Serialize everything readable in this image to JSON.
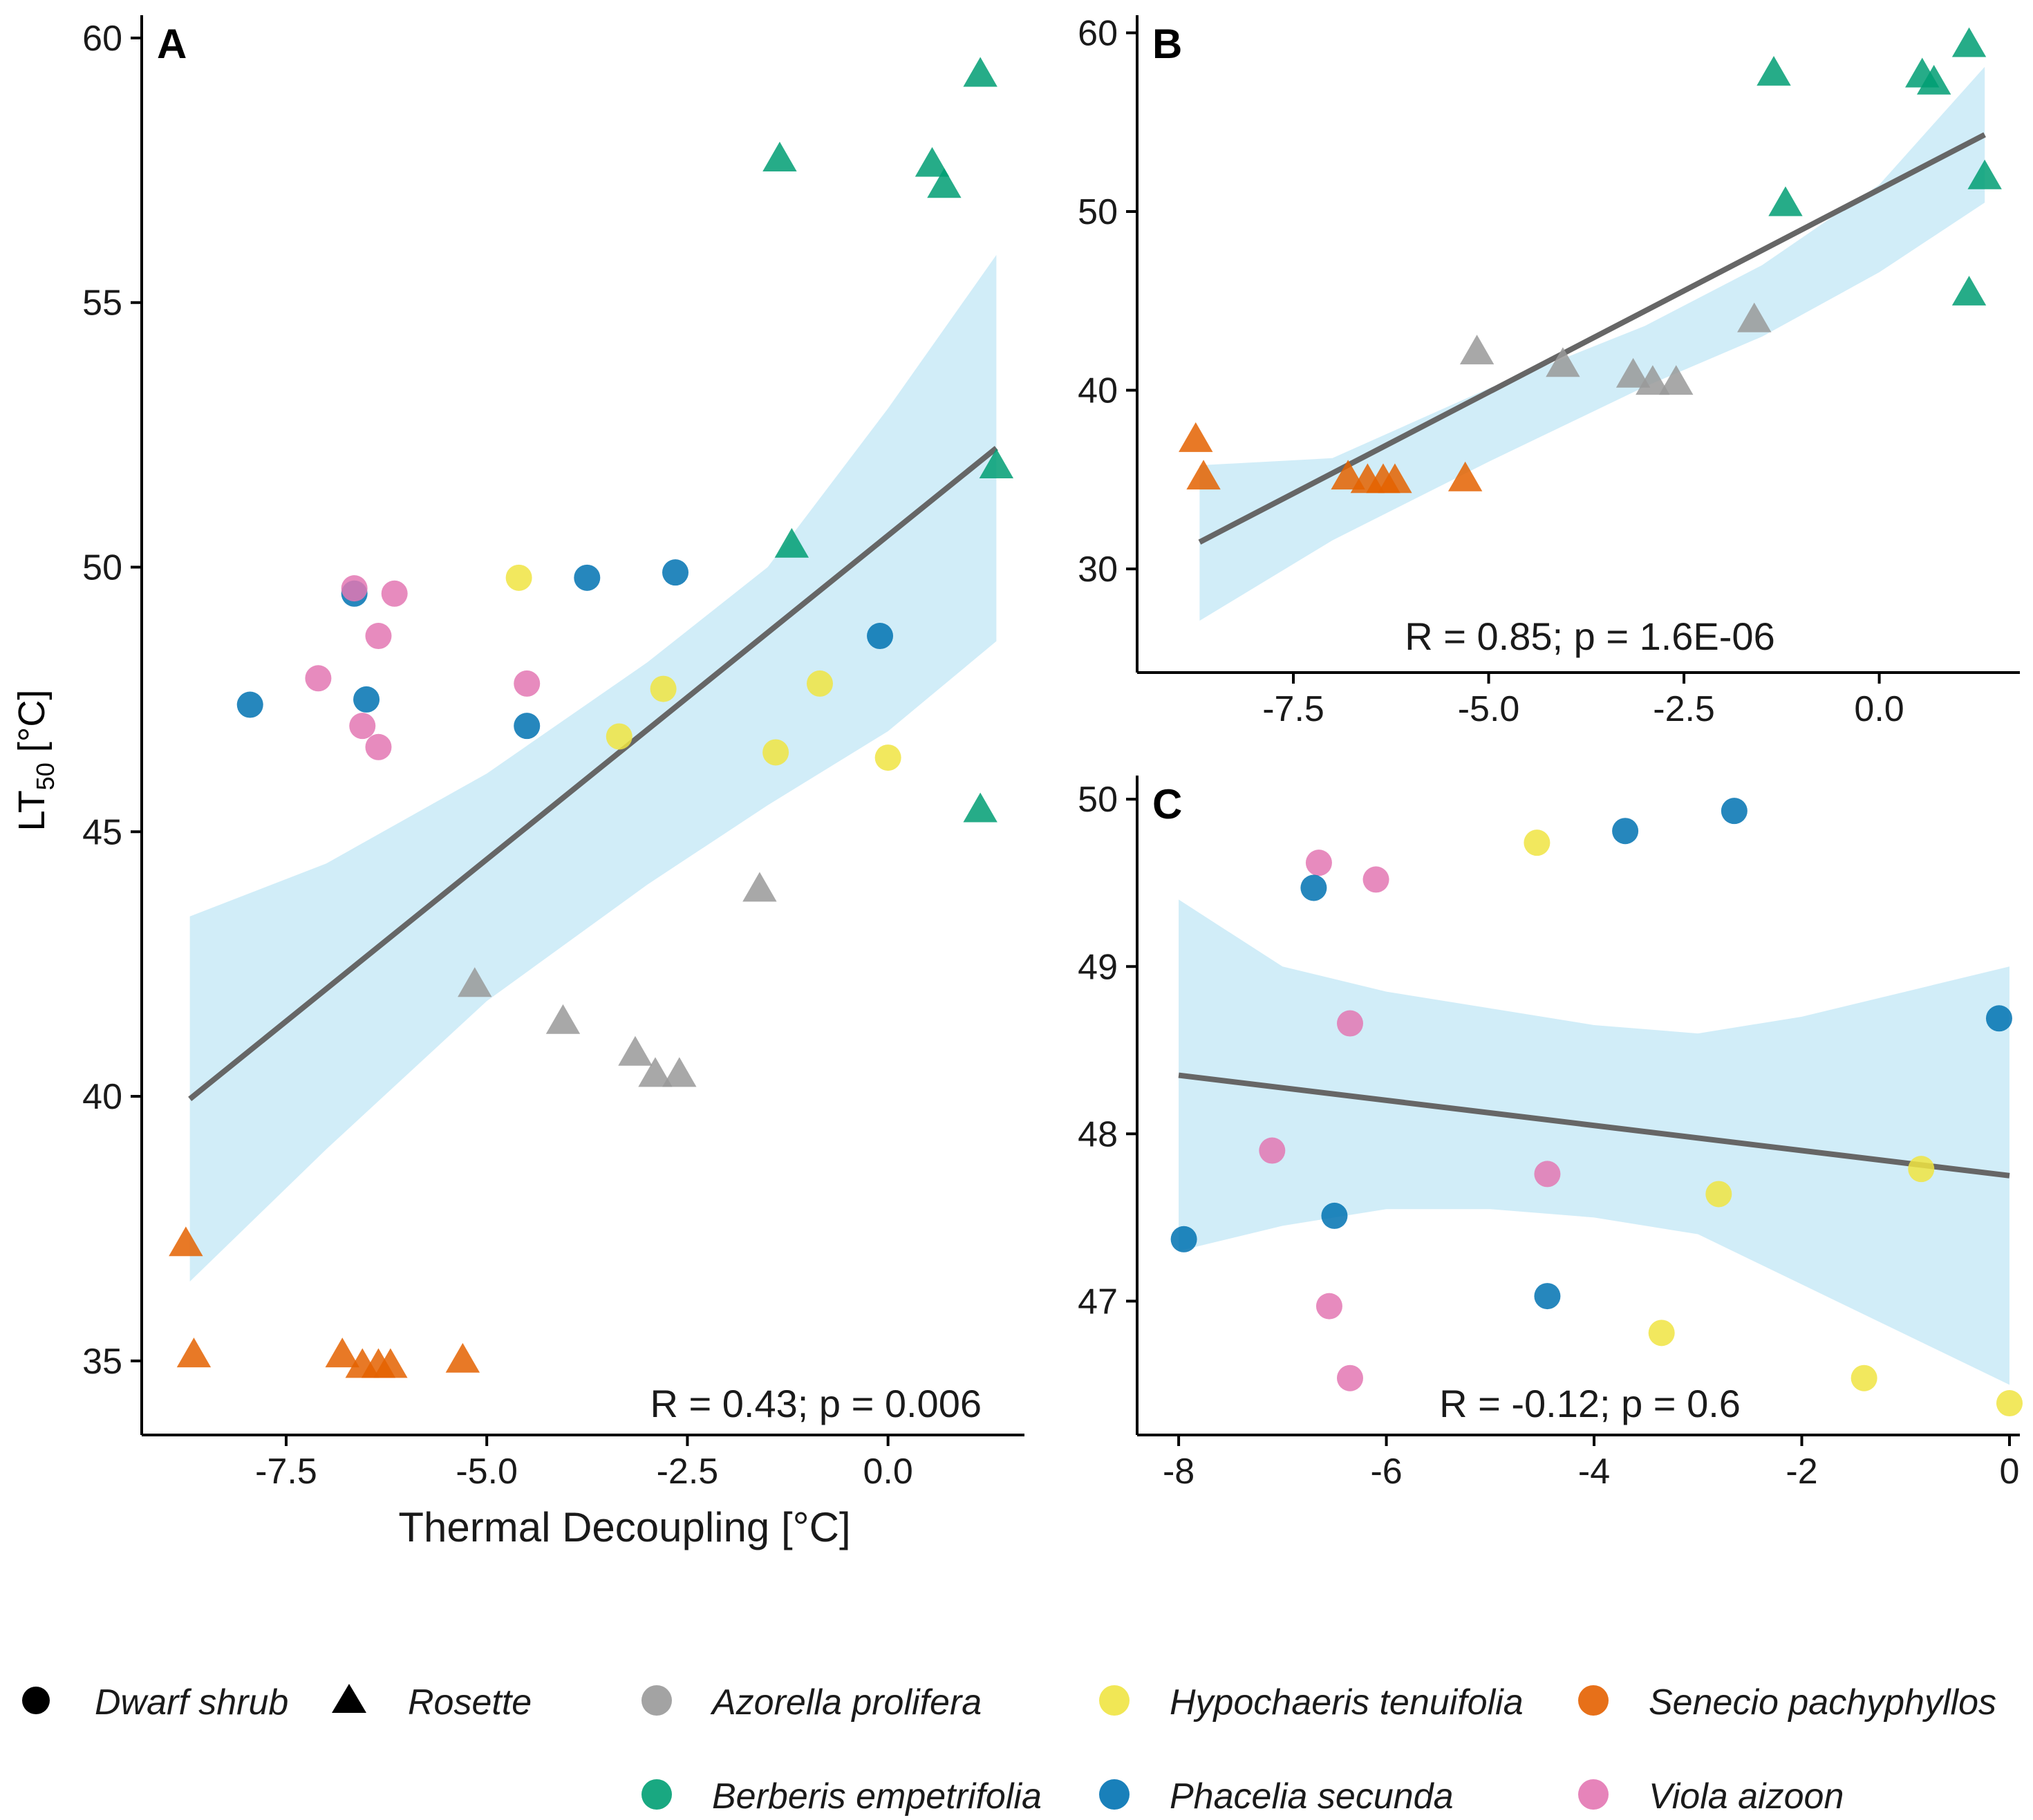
{
  "colors": {
    "Azorella prolifera": "#999999",
    "Berberis empetrifolia": "#009E73",
    "Hypochaeris tenuifolia": "#F0E442",
    "Phacelia secunda": "#0072B2",
    "Senecio pachyphyllos": "#E46100",
    "Viola aizoon": "#E377B3",
    "ci_band": "#BEE6F5",
    "fit_line": "#666666"
  },
  "legend": {
    "shapes": [
      {
        "label": "Dwarf shrub",
        "shape": "circle"
      },
      {
        "label": "Rosette",
        "shape": "triangle"
      }
    ],
    "species": [
      "Azorella prolifera",
      "Hypochaeris tenuifolia",
      "Senecio pachyphyllos",
      "Berberis empetrifolia",
      "Phacelia secunda",
      "Viola aizoon"
    ]
  },
  "y_axis_label": {
    "prefix": "LT",
    "subscript": "50",
    "suffix": " [°C]"
  },
  "chart_data": [
    {
      "id": "A",
      "type": "scatter",
      "panel_label": "A",
      "xlabel": "Thermal Decoupling [°C]",
      "xlim": [
        -9.3,
        1.7
      ],
      "ylim": [
        33.6,
        60.3
      ],
      "xticks": [
        -7.5,
        -5.0,
        -2.5,
        0.0
      ],
      "xtick_labels": [
        "-7.5",
        "-5.0",
        "-2.5",
        "0.0"
      ],
      "yticks": [
        35,
        40,
        45,
        50,
        55,
        60
      ],
      "ytick_labels": [
        "35",
        "40",
        "45",
        "50",
        "55",
        "60"
      ],
      "annotation": "R = 0.43; p = 0.006",
      "fit": {
        "x": [
          -8.7,
          1.35
        ],
        "y": [
          39.95,
          52.25
        ]
      },
      "ci": {
        "x": [
          -8.7,
          -7.0,
          -5.0,
          -3.0,
          -1.5,
          0.0,
          1.35
        ],
        "lower": [
          36.5,
          39.0,
          41.8,
          44.0,
          45.5,
          46.9,
          48.6
        ],
        "upper": [
          43.4,
          44.4,
          46.1,
          48.2,
          50.0,
          53.0,
          55.9
        ]
      },
      "points": [
        {
          "x": 1.15,
          "y": 59.3,
          "shape": "triangle",
          "species": "Berberis empetrifolia"
        },
        {
          "x": -1.35,
          "y": 57.7,
          "shape": "triangle",
          "species": "Berberis empetrifolia"
        },
        {
          "x": 0.55,
          "y": 57.6,
          "shape": "triangle",
          "species": "Berberis empetrifolia"
        },
        {
          "x": 0.7,
          "y": 57.2,
          "shape": "triangle",
          "species": "Berberis empetrifolia"
        },
        {
          "x": 1.35,
          "y": 51.9,
          "shape": "triangle",
          "species": "Berberis empetrifolia"
        },
        {
          "x": -1.2,
          "y": 50.4,
          "shape": "triangle",
          "species": "Berberis empetrifolia"
        },
        {
          "x": 1.15,
          "y": 45.4,
          "shape": "triangle",
          "species": "Berberis empetrifolia"
        },
        {
          "x": -1.6,
          "y": 43.9,
          "shape": "triangle",
          "species": "Azorella prolifera"
        },
        {
          "x": -5.15,
          "y": 42.1,
          "shape": "triangle",
          "species": "Azorella prolifera"
        },
        {
          "x": -4.05,
          "y": 41.4,
          "shape": "triangle",
          "species": "Azorella prolifera"
        },
        {
          "x": -3.15,
          "y": 40.8,
          "shape": "triangle",
          "species": "Azorella prolifera"
        },
        {
          "x": -2.9,
          "y": 40.4,
          "shape": "triangle",
          "species": "Azorella prolifera"
        },
        {
          "x": -2.6,
          "y": 40.4,
          "shape": "triangle",
          "species": "Azorella prolifera"
        },
        {
          "x": -8.75,
          "y": 37.2,
          "shape": "triangle",
          "species": "Senecio pachyphyllos"
        },
        {
          "x": -8.65,
          "y": 35.1,
          "shape": "triangle",
          "species": "Senecio pachyphyllos"
        },
        {
          "x": -6.8,
          "y": 35.1,
          "shape": "triangle",
          "species": "Senecio pachyphyllos"
        },
        {
          "x": -6.55,
          "y": 34.9,
          "shape": "triangle",
          "species": "Senecio pachyphyllos"
        },
        {
          "x": -6.35,
          "y": 34.9,
          "shape": "triangle",
          "species": "Senecio pachyphyllos"
        },
        {
          "x": -6.2,
          "y": 34.9,
          "shape": "triangle",
          "species": "Senecio pachyphyllos"
        },
        {
          "x": -5.3,
          "y": 35.0,
          "shape": "triangle",
          "species": "Senecio pachyphyllos"
        },
        {
          "x": -7.95,
          "y": 47.4,
          "shape": "circle",
          "species": "Phacelia secunda"
        },
        {
          "x": -6.65,
          "y": 49.5,
          "shape": "circle",
          "species": "Phacelia secunda"
        },
        {
          "x": -6.5,
          "y": 47.5,
          "shape": "circle",
          "species": "Phacelia secunda"
        },
        {
          "x": -4.5,
          "y": 47.0,
          "shape": "circle",
          "species": "Phacelia secunda"
        },
        {
          "x": -3.75,
          "y": 49.8,
          "shape": "circle",
          "species": "Phacelia secunda"
        },
        {
          "x": -2.65,
          "y": 49.9,
          "shape": "circle",
          "species": "Phacelia secunda"
        },
        {
          "x": -0.1,
          "y": 48.7,
          "shape": "circle",
          "species": "Phacelia secunda"
        },
        {
          "x": -6.65,
          "y": 49.6,
          "shape": "circle",
          "species": "Viola aizoon"
        },
        {
          "x": -6.15,
          "y": 49.5,
          "shape": "circle",
          "species": "Viola aizoon"
        },
        {
          "x": -6.35,
          "y": 48.7,
          "shape": "circle",
          "species": "Viola aizoon"
        },
        {
          "x": -7.1,
          "y": 47.9,
          "shape": "circle",
          "species": "Viola aizoon"
        },
        {
          "x": -4.5,
          "y": 47.8,
          "shape": "circle",
          "species": "Viola aizoon"
        },
        {
          "x": -6.55,
          "y": 47.0,
          "shape": "circle",
          "species": "Viola aizoon"
        },
        {
          "x": -6.35,
          "y": 46.6,
          "shape": "circle",
          "species": "Viola aizoon"
        },
        {
          "x": -4.6,
          "y": 49.8,
          "shape": "circle",
          "species": "Hypochaeris tenuifolia"
        },
        {
          "x": -2.8,
          "y": 47.7,
          "shape": "circle",
          "species": "Hypochaeris tenuifolia"
        },
        {
          "x": -0.85,
          "y": 47.8,
          "shape": "circle",
          "species": "Hypochaeris tenuifolia"
        },
        {
          "x": -3.35,
          "y": 46.8,
          "shape": "circle",
          "species": "Hypochaeris tenuifolia"
        },
        {
          "x": -1.4,
          "y": 46.5,
          "shape": "circle",
          "species": "Hypochaeris tenuifolia"
        },
        {
          "x": 0.0,
          "y": 46.4,
          "shape": "circle",
          "species": "Hypochaeris tenuifolia"
        }
      ]
    },
    {
      "id": "B",
      "type": "scatter",
      "panel_label": "B",
      "xlabel": "",
      "xlim": [
        -9.5,
        1.8
      ],
      "ylim": [
        24.2,
        60.6
      ],
      "xticks": [
        -7.5,
        -5.0,
        -2.5,
        0.0
      ],
      "xtick_labels": [
        "-7.5",
        "-5.0",
        "-2.5",
        "0.0"
      ],
      "yticks": [
        30,
        40,
        50,
        60
      ],
      "ytick_labels": [
        "30",
        "40",
        "50",
        "60"
      ],
      "annotation": "R = 0.85; p = 1.6E-06",
      "fit": {
        "x": [
          -8.7,
          1.35
        ],
        "y": [
          31.5,
          54.3
        ]
      },
      "ci": {
        "x": [
          -8.7,
          -7.0,
          -5.0,
          -3.0,
          -1.5,
          0.0,
          1.35
        ],
        "lower": [
          27.1,
          31.6,
          36.0,
          40.2,
          43.0,
          46.6,
          50.5
        ],
        "upper": [
          35.8,
          36.2,
          40.1,
          43.6,
          47.0,
          51.5,
          58.1
        ]
      },
      "points": [
        {
          "x": 1.15,
          "y": 59.3,
          "shape": "triangle",
          "species": "Berberis empetrifolia"
        },
        {
          "x": -1.35,
          "y": 57.7,
          "shape": "triangle",
          "species": "Berberis empetrifolia"
        },
        {
          "x": 0.55,
          "y": 57.6,
          "shape": "triangle",
          "species": "Berberis empetrifolia"
        },
        {
          "x": 0.7,
          "y": 57.2,
          "shape": "triangle",
          "species": "Berberis empetrifolia"
        },
        {
          "x": 1.35,
          "y": 51.9,
          "shape": "triangle",
          "species": "Berberis empetrifolia"
        },
        {
          "x": -1.2,
          "y": 50.4,
          "shape": "triangle",
          "species": "Berberis empetrifolia"
        },
        {
          "x": 1.15,
          "y": 45.4,
          "shape": "triangle",
          "species": "Berberis empetrifolia"
        },
        {
          "x": -1.6,
          "y": 43.9,
          "shape": "triangle",
          "species": "Azorella prolifera"
        },
        {
          "x": -5.15,
          "y": 42.1,
          "shape": "triangle",
          "species": "Azorella prolifera"
        },
        {
          "x": -4.05,
          "y": 41.4,
          "shape": "triangle",
          "species": "Azorella prolifera"
        },
        {
          "x": -3.15,
          "y": 40.8,
          "shape": "triangle",
          "species": "Azorella prolifera"
        },
        {
          "x": -2.9,
          "y": 40.4,
          "shape": "triangle",
          "species": "Azorella prolifera"
        },
        {
          "x": -2.6,
          "y": 40.4,
          "shape": "triangle",
          "species": "Azorella prolifera"
        },
        {
          "x": -8.75,
          "y": 37.2,
          "shape": "triangle",
          "species": "Senecio pachyphyllos"
        },
        {
          "x": -8.65,
          "y": 35.1,
          "shape": "triangle",
          "species": "Senecio pachyphyllos"
        },
        {
          "x": -6.8,
          "y": 35.1,
          "shape": "triangle",
          "species": "Senecio pachyphyllos"
        },
        {
          "x": -6.55,
          "y": 34.9,
          "shape": "triangle",
          "species": "Senecio pachyphyllos"
        },
        {
          "x": -6.35,
          "y": 34.9,
          "shape": "triangle",
          "species": "Senecio pachyphyllos"
        },
        {
          "x": -6.2,
          "y": 34.9,
          "shape": "triangle",
          "species": "Senecio pachyphyllos"
        },
        {
          "x": -5.3,
          "y": 35.0,
          "shape": "triangle",
          "species": "Senecio pachyphyllos"
        }
      ]
    },
    {
      "id": "C",
      "type": "scatter",
      "panel_label": "C",
      "xlabel": "",
      "xlim": [
        -8.4,
        0.1
      ],
      "ylim": [
        46.2,
        50.1
      ],
      "xticks": [
        -8,
        -6,
        -4,
        -2,
        0
      ],
      "xtick_labels": [
        "-8",
        "-6",
        "-4",
        "-2",
        "0"
      ],
      "yticks": [
        47,
        48,
        49,
        50
      ],
      "ytick_labels": [
        "47",
        "48",
        "49",
        "50"
      ],
      "annotation": "R = -0.12; p = 0.6",
      "fit": {
        "x": [
          -8.0,
          0.0
        ],
        "y": [
          48.35,
          47.75
        ]
      },
      "ci": {
        "x": [
          -8.0,
          -7.0,
          -6.0,
          -5.0,
          -4.0,
          -3.0,
          -2.0,
          -1.0,
          0.0
        ],
        "lower": [
          47.3,
          47.45,
          47.55,
          47.55,
          47.5,
          47.4,
          47.1,
          46.8,
          46.5
        ],
        "upper": [
          49.4,
          49.0,
          48.85,
          48.75,
          48.65,
          48.6,
          48.7,
          48.85,
          49.0
        ]
      },
      "points": [
        {
          "x": -6.65,
          "y": 49.62,
          "shape": "circle",
          "species": "Viola aizoon"
        },
        {
          "x": -6.1,
          "y": 49.52,
          "shape": "circle",
          "species": "Viola aizoon"
        },
        {
          "x": -6.35,
          "y": 48.66,
          "shape": "circle",
          "species": "Viola aizoon"
        },
        {
          "x": -7.1,
          "y": 47.9,
          "shape": "circle",
          "species": "Viola aizoon"
        },
        {
          "x": -4.45,
          "y": 47.76,
          "shape": "circle",
          "species": "Viola aizoon"
        },
        {
          "x": -6.55,
          "y": 46.97,
          "shape": "circle",
          "species": "Viola aizoon"
        },
        {
          "x": -6.35,
          "y": 46.54,
          "shape": "circle",
          "species": "Viola aizoon"
        },
        {
          "x": -6.7,
          "y": 49.47,
          "shape": "circle",
          "species": "Phacelia secunda"
        },
        {
          "x": -3.7,
          "y": 49.81,
          "shape": "circle",
          "species": "Phacelia secunda"
        },
        {
          "x": -2.65,
          "y": 49.93,
          "shape": "circle",
          "species": "Phacelia secunda"
        },
        {
          "x": -0.1,
          "y": 48.69,
          "shape": "circle",
          "species": "Phacelia secunda"
        },
        {
          "x": -7.95,
          "y": 47.37,
          "shape": "circle",
          "species": "Phacelia secunda"
        },
        {
          "x": -6.5,
          "y": 47.51,
          "shape": "circle",
          "species": "Phacelia secunda"
        },
        {
          "x": -4.45,
          "y": 47.03,
          "shape": "circle",
          "species": "Phacelia secunda"
        },
        {
          "x": -4.55,
          "y": 49.74,
          "shape": "circle",
          "species": "Hypochaeris tenuifolia"
        },
        {
          "x": -2.8,
          "y": 47.64,
          "shape": "circle",
          "species": "Hypochaeris tenuifolia"
        },
        {
          "x": -0.85,
          "y": 47.79,
          "shape": "circle",
          "species": "Hypochaeris tenuifolia"
        },
        {
          "x": -3.35,
          "y": 46.81,
          "shape": "circle",
          "species": "Hypochaeris tenuifolia"
        },
        {
          "x": -1.4,
          "y": 46.54,
          "shape": "circle",
          "species": "Hypochaeris tenuifolia"
        },
        {
          "x": 0.0,
          "y": 46.39,
          "shape": "circle",
          "species": "Hypochaeris tenuifolia"
        }
      ]
    }
  ]
}
